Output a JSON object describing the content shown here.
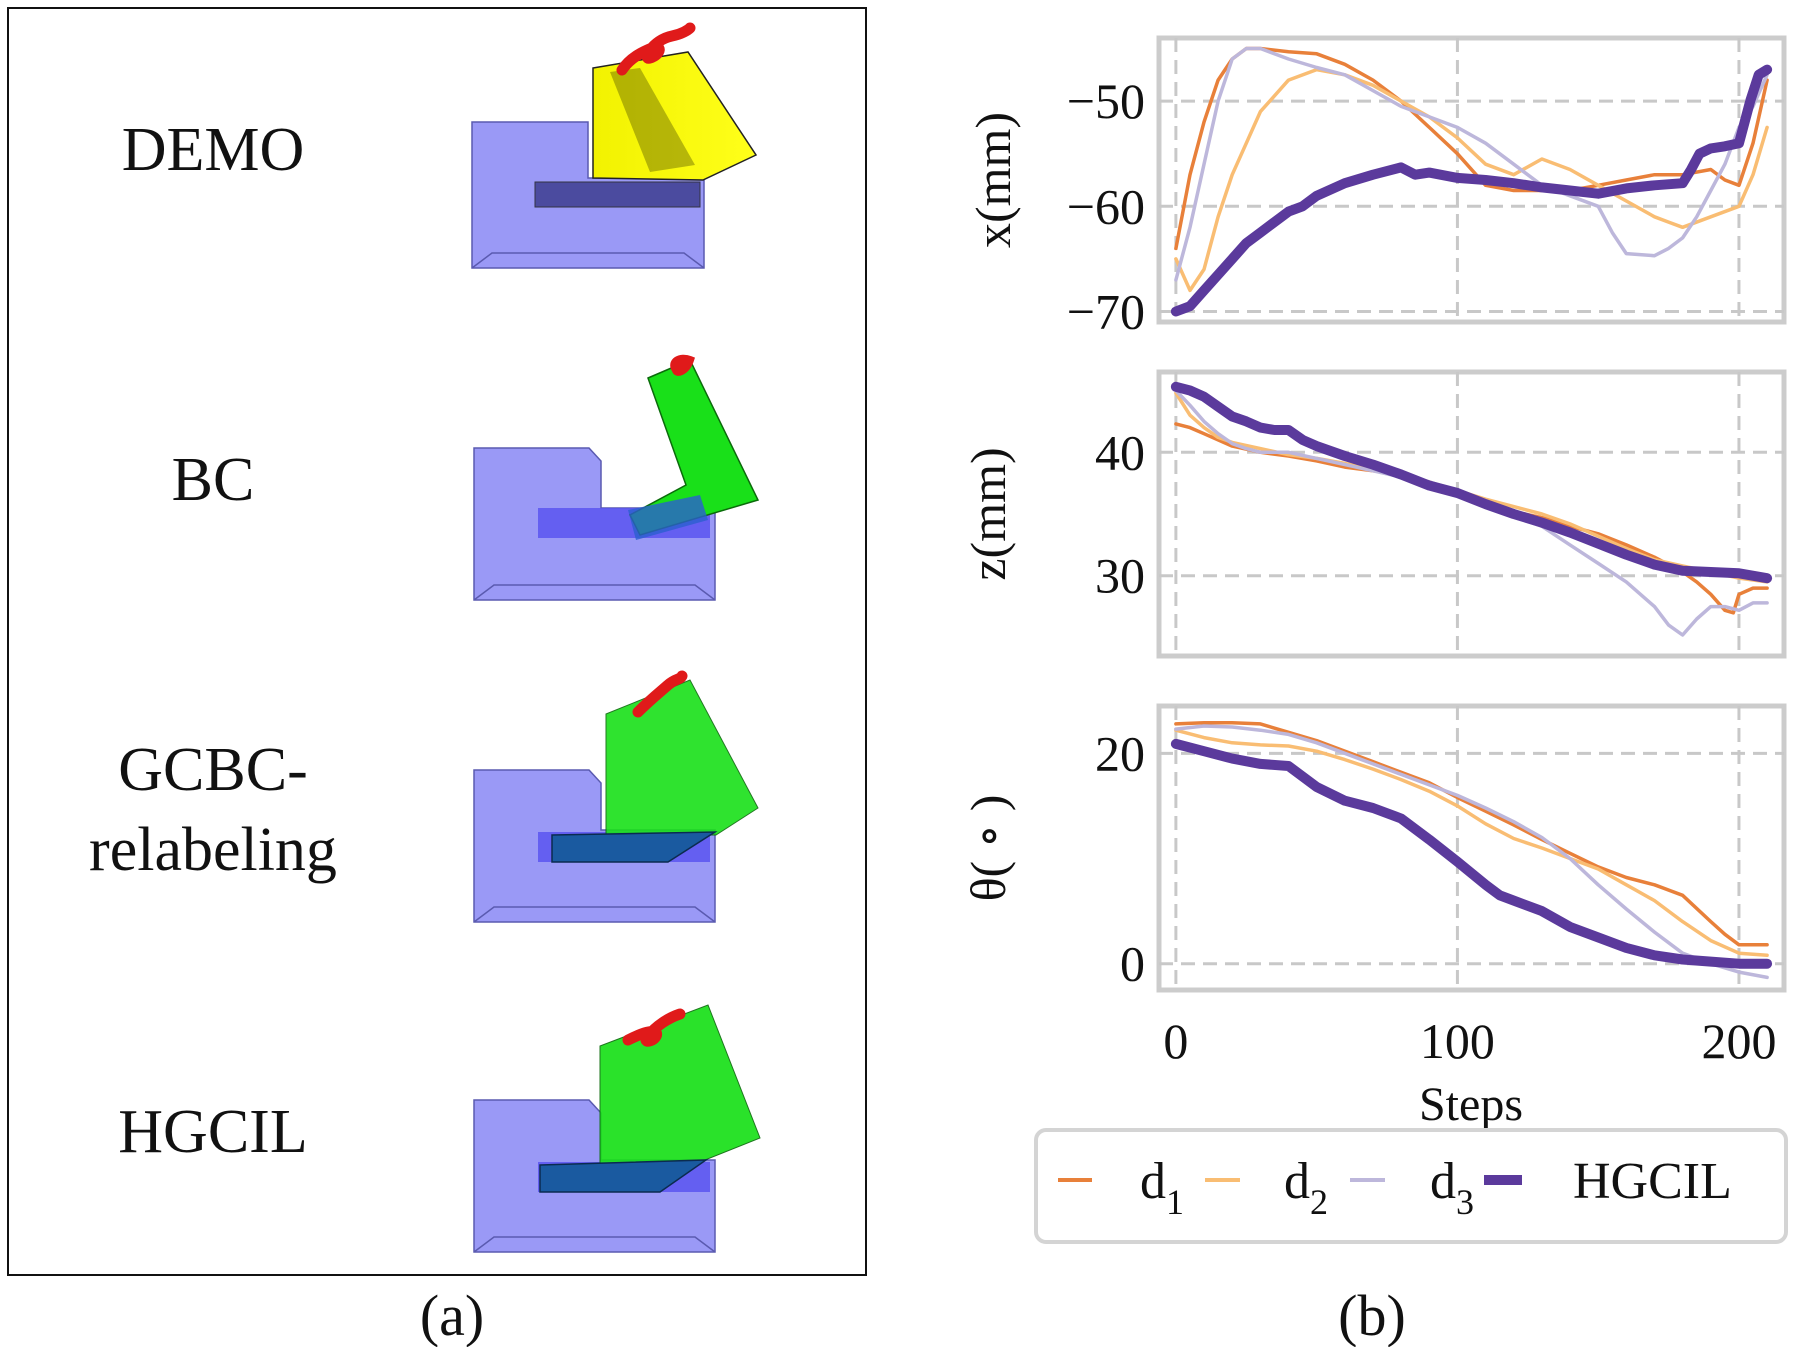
{
  "panel_a": {
    "caption": "(a)",
    "rows": [
      {
        "label_lines": [
          "DEMO"
        ]
      },
      {
        "label_lines": [
          "BC"
        ]
      },
      {
        "label_lines": [
          "GCBC-",
          "relabeling"
        ]
      },
      {
        "label_lines": [
          "HGCIL"
        ]
      }
    ]
  },
  "panel_b": {
    "caption": "(b)",
    "legend": [
      {
        "key": "d1",
        "base": "d",
        "sub": "1",
        "color": "#e8803a",
        "width": "thin"
      },
      {
        "key": "d2",
        "base": "d",
        "sub": "2",
        "color": "#f9bd73",
        "width": "thin"
      },
      {
        "key": "d3",
        "base": "d",
        "sub": "3",
        "color": "#bdb7db",
        "width": "thin"
      },
      {
        "key": "hgcil",
        "base": "HGCIL",
        "sub": "",
        "color": "#5b3a9c",
        "width": "thick"
      }
    ]
  },
  "chart_data": [
    {
      "type": "line",
      "title": "",
      "xlabel": "",
      "ylabel": "x(mm)",
      "xlim": [
        -6,
        216
      ],
      "ylim": [
        -71,
        -44
      ],
      "yticks": [
        {
          "v": -70,
          "label": "−70"
        },
        {
          "v": -60,
          "label": "−60"
        },
        {
          "v": -50,
          "label": "−50"
        }
      ],
      "xticks": [],
      "grid": true,
      "series": [
        {
          "name": "d1",
          "x": [
            0,
            5,
            10,
            15,
            20,
            25,
            30,
            40,
            50,
            60,
            70,
            80,
            90,
            100,
            110,
            120,
            130,
            140,
            150,
            160,
            170,
            180,
            190,
            195,
            200,
            205,
            210
          ],
          "y": [
            -64,
            -57,
            -52,
            -48,
            -46,
            -45,
            -45,
            -45.3,
            -45.5,
            -46.5,
            -48,
            -50,
            -52.5,
            -55,
            -58,
            -58.5,
            -58.5,
            -58.5,
            -58,
            -57.5,
            -57,
            -57,
            -56.5,
            -57.5,
            -58,
            -54,
            -48
          ]
        },
        {
          "name": "d2",
          "x": [
            0,
            5,
            10,
            15,
            20,
            25,
            30,
            40,
            50,
            60,
            70,
            80,
            90,
            100,
            110,
            120,
            130,
            140,
            150,
            160,
            170,
            175,
            180,
            190,
            200,
            205,
            210
          ],
          "y": [
            -65,
            -68,
            -66,
            -61,
            -57,
            -54,
            -51,
            -48,
            -47,
            -47.5,
            -48.5,
            -50,
            -51.5,
            -53.5,
            -56,
            -57,
            -55.5,
            -56.5,
            -58,
            -59.5,
            -61,
            -61.5,
            -62,
            -61,
            -60,
            -57,
            -52.5
          ]
        },
        {
          "name": "d3",
          "x": [
            0,
            5,
            10,
            15,
            20,
            25,
            30,
            40,
            50,
            60,
            70,
            80,
            90,
            100,
            110,
            120,
            130,
            140,
            150,
            155,
            160,
            170,
            175,
            180,
            185,
            190,
            195,
            200,
            205,
            210
          ],
          "y": [
            -67,
            -62,
            -56,
            -50,
            -46,
            -45,
            -45,
            -46,
            -46.8,
            -47.5,
            -49,
            -50.5,
            -51.5,
            -52.5,
            -54,
            -56,
            -58,
            -59,
            -60,
            -62.5,
            -64.5,
            -64.7,
            -64,
            -63,
            -61,
            -58.5,
            -56,
            -52.5,
            -50.5,
            -47.5
          ]
        },
        {
          "name": "HGCIL",
          "x": [
            0,
            5,
            10,
            15,
            20,
            25,
            30,
            35,
            40,
            45,
            50,
            60,
            70,
            80,
            85,
            90,
            100,
            110,
            120,
            130,
            140,
            150,
            160,
            170,
            180,
            183,
            186,
            190,
            195,
            200,
            204,
            207,
            210
          ],
          "y": [
            -70,
            -69.5,
            -68,
            -66.5,
            -65,
            -63.5,
            -62.5,
            -61.5,
            -60.5,
            -60,
            -59,
            -57.8,
            -57,
            -56.3,
            -57,
            -56.8,
            -57.3,
            -57.5,
            -57.8,
            -58.2,
            -58.5,
            -58.8,
            -58.3,
            -58,
            -57.8,
            -56.5,
            -55,
            -54.5,
            -54.3,
            -54,
            -50,
            -47.5,
            -47
          ]
        }
      ]
    },
    {
      "type": "line",
      "title": "",
      "xlabel": "",
      "ylabel": "z(mm)",
      "xlim": [
        -6,
        216
      ],
      "ylim": [
        23.5,
        46.5
      ],
      "yticks": [
        {
          "v": 30,
          "label": "30"
        },
        {
          "v": 40,
          "label": "40"
        }
      ],
      "xticks": [],
      "grid": true,
      "series": [
        {
          "name": "d1",
          "x": [
            0,
            5,
            10,
            15,
            20,
            30,
            40,
            50,
            60,
            70,
            80,
            90,
            100,
            110,
            120,
            130,
            140,
            150,
            160,
            170,
            180,
            185,
            190,
            195,
            198,
            200,
            205,
            210
          ],
          "y": [
            42.3,
            42,
            41.5,
            41,
            40.5,
            40,
            39.7,
            39.3,
            38.8,
            38.5,
            38.2,
            37.6,
            36.8,
            35.8,
            35.2,
            34.7,
            34,
            33.4,
            32.5,
            31.5,
            30.3,
            29.5,
            28.5,
            27.2,
            27,
            28.5,
            29,
            29
          ]
        },
        {
          "name": "d2",
          "x": [
            0,
            5,
            10,
            15,
            20,
            30,
            40,
            50,
            60,
            70,
            80,
            90,
            100,
            110,
            120,
            130,
            140,
            150,
            160,
            170,
            180,
            190,
            200,
            210
          ],
          "y": [
            44.8,
            43,
            42,
            41.2,
            40.8,
            40.3,
            39.8,
            39.5,
            39.1,
            38.6,
            38.1,
            37.5,
            36.9,
            36.2,
            35.6,
            35,
            34.2,
            33.2,
            32.2,
            31.3,
            30.8,
            30.3,
            29.8,
            29.5
          ]
        },
        {
          "name": "d3",
          "x": [
            0,
            5,
            10,
            15,
            20,
            25,
            30,
            40,
            50,
            60,
            70,
            80,
            90,
            100,
            110,
            120,
            130,
            140,
            150,
            160,
            170,
            175,
            180,
            185,
            190,
            195,
            200,
            205,
            210
          ],
          "y": [
            45,
            43.8,
            42.5,
            41.5,
            40.7,
            40.3,
            40,
            40,
            39.5,
            39,
            38.5,
            38,
            37.6,
            36.9,
            35.7,
            34.8,
            34,
            32.5,
            31,
            29.5,
            27.5,
            26,
            25.2,
            26.5,
            27.5,
            27.5,
            27.2,
            27.8,
            27.8
          ]
        },
        {
          "name": "HGCIL",
          "x": [
            0,
            5,
            10,
            15,
            20,
            25,
            30,
            35,
            40,
            45,
            50,
            60,
            70,
            80,
            90,
            100,
            110,
            120,
            130,
            140,
            150,
            160,
            170,
            180,
            190,
            200,
            210
          ],
          "y": [
            45.3,
            45,
            44.5,
            43.7,
            42.9,
            42.5,
            42,
            41.8,
            41.8,
            41,
            40.5,
            39.7,
            39,
            38.2,
            37.3,
            36.7,
            35.8,
            35,
            34.3,
            33.5,
            32.6,
            31.7,
            30.9,
            30.4,
            30.3,
            30.2,
            29.8
          ]
        }
      ]
    },
    {
      "type": "line",
      "title": "",
      "xlabel": "Steps",
      "ylabel": "θ( ∘ )",
      "xlim": [
        -6,
        216
      ],
      "ylim": [
        -2.5,
        24.5
      ],
      "yticks": [
        {
          "v": 0,
          "label": "0"
        },
        {
          "v": 20,
          "label": "20"
        }
      ],
      "xticks": [
        {
          "v": 0,
          "label": "0"
        },
        {
          "v": 100,
          "label": "100"
        },
        {
          "v": 200,
          "label": "200"
        }
      ],
      "grid": true,
      "series": [
        {
          "name": "d1",
          "x": [
            0,
            10,
            20,
            30,
            40,
            50,
            60,
            70,
            80,
            90,
            100,
            110,
            120,
            130,
            140,
            150,
            160,
            170,
            180,
            190,
            195,
            200,
            210
          ],
          "y": [
            22.8,
            22.9,
            22.9,
            22.8,
            22,
            21.2,
            20.2,
            19.2,
            18.2,
            17.2,
            15.8,
            14.5,
            13.2,
            11.8,
            10.5,
            9.2,
            8.2,
            7.5,
            6.5,
            4,
            2.8,
            1.8,
            1.8
          ]
        },
        {
          "name": "d2",
          "x": [
            0,
            10,
            20,
            30,
            40,
            50,
            60,
            70,
            80,
            90,
            100,
            110,
            120,
            130,
            140,
            150,
            160,
            170,
            180,
            190,
            200,
            210
          ],
          "y": [
            22.2,
            21.5,
            21,
            20.8,
            20.7,
            20.2,
            19.4,
            18.5,
            17.5,
            16.4,
            15,
            13.3,
            11.9,
            11,
            10,
            9,
            7.5,
            6,
            4,
            2.2,
            1,
            0.8
          ]
        },
        {
          "name": "d3",
          "x": [
            0,
            10,
            20,
            30,
            40,
            50,
            60,
            70,
            80,
            90,
            100,
            110,
            120,
            130,
            140,
            150,
            160,
            170,
            180,
            190,
            200,
            210
          ],
          "y": [
            22.3,
            22.6,
            22.5,
            22.2,
            21.8,
            21,
            20,
            19,
            18,
            17,
            16,
            14.8,
            13.5,
            12,
            10,
            7.5,
            5.2,
            3,
            1,
            0,
            -0.8,
            -1.3
          ]
        },
        {
          "name": "HGCIL",
          "x": [
            0,
            10,
            20,
            30,
            40,
            45,
            50,
            60,
            70,
            80,
            90,
            100,
            110,
            115,
            120,
            130,
            140,
            150,
            160,
            170,
            180,
            190,
            200,
            210
          ],
          "y": [
            20.9,
            20.2,
            19.5,
            19,
            18.8,
            17.8,
            16.8,
            15.5,
            14.8,
            13.8,
            11.8,
            9.7,
            7.5,
            6.5,
            6,
            5,
            3.5,
            2.5,
            1.5,
            0.8,
            0.4,
            0.2,
            0,
            0
          ]
        }
      ]
    }
  ]
}
